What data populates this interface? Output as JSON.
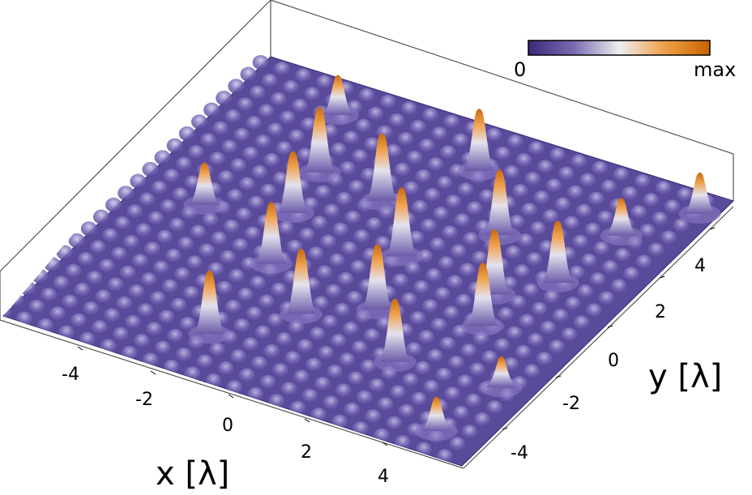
{
  "chart_data": {
    "type": "surface",
    "title": "",
    "xlabel": "x [λ]",
    "ylabel": "y [λ]",
    "xlim": [
      -6,
      6
    ],
    "ylim": [
      -6,
      6
    ],
    "xticks": [
      "-4",
      "-2",
      "0",
      "2",
      "4"
    ],
    "yticks": [
      "-4",
      "-2",
      "0",
      "2",
      "4"
    ],
    "colorbar": {
      "min_label": "0",
      "max_label": "max",
      "colors": [
        "#3b2a7a",
        "#7a6bb0",
        "#eeeef2",
        "#f0a04a",
        "#c86400"
      ]
    },
    "surface_color": "#5a4a9a",
    "peaks": [
      {
        "x": -4.3,
        "y": 0.1,
        "z": 0.62
      },
      {
        "x": -3.5,
        "y": 4.7,
        "z": 0.58
      },
      {
        "x": -2.7,
        "y": 2.5,
        "z": 0.95
      },
      {
        "x": -2.4,
        "y": 0.8,
        "z": 0.9
      },
      {
        "x": -1.8,
        "y": -1.2,
        "z": 0.9
      },
      {
        "x": -1.6,
        "y": -4.3,
        "z": 0.92
      },
      {
        "x": -0.9,
        "y": 2.2,
        "z": 0.98
      },
      {
        "x": -0.2,
        "y": -2.6,
        "z": 0.95
      },
      {
        "x": 0.4,
        "y": 4.3,
        "z": 0.9
      },
      {
        "x": 0.6,
        "y": 0.5,
        "z": 1.0
      },
      {
        "x": 1.2,
        "y": -1.6,
        "z": 0.95
      },
      {
        "x": 2.1,
        "y": 2.3,
        "z": 0.95
      },
      {
        "x": 2.6,
        "y": -3.2,
        "z": 0.92
      },
      {
        "x": 3.2,
        "y": 0.2,
        "z": 0.95
      },
      {
        "x": 3.6,
        "y": -1.0,
        "z": 0.92
      },
      {
        "x": 4.2,
        "y": 1.3,
        "z": 0.9
      },
      {
        "x": 4.5,
        "y": 3.6,
        "z": 0.55
      },
      {
        "x": 4.8,
        "y": -5.1,
        "z": 0.5
      },
      {
        "x": 5.2,
        "y": -2.9,
        "z": 0.45
      },
      {
        "x": 5.6,
        "y": 5.2,
        "z": 0.6
      }
    ]
  }
}
